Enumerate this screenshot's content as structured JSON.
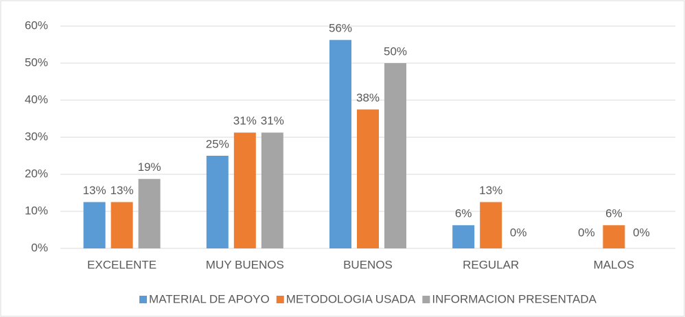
{
  "chart_data": {
    "type": "bar",
    "categories": [
      "EXCELENTE",
      "MUY BUENOS",
      "BUENOS",
      "REGULAR",
      "MALOS"
    ],
    "series": [
      {
        "name": "MATERIAL DE APOYO",
        "color": "#5b9bd5",
        "values": [
          12.5,
          25,
          56.25,
          6.25,
          0
        ],
        "value_labels": [
          "13%",
          "25%",
          "56%",
          "6%",
          "0%"
        ]
      },
      {
        "name": "METODOLOGIA USADA",
        "color": "#ed7d31",
        "values": [
          12.5,
          31.25,
          37.5,
          12.5,
          6.25
        ],
        "value_labels": [
          "13%",
          "31%",
          "38%",
          "13%",
          "6%"
        ]
      },
      {
        "name": "INFORMACION PRESENTADA",
        "color": "#a5a5a5",
        "values": [
          18.75,
          31.25,
          50,
          0,
          0
        ],
        "value_labels": [
          "19%",
          "31%",
          "50%",
          "0%",
          "0%"
        ]
      }
    ],
    "ylim": [
      0,
      60
    ],
    "yticks": [
      {
        "value": 0,
        "label": "0%"
      },
      {
        "value": 10,
        "label": "10%"
      },
      {
        "value": 20,
        "label": "20%"
      },
      {
        "value": 30,
        "label": "30%"
      },
      {
        "value": 40,
        "label": "40%"
      },
      {
        "value": 50,
        "label": "50%"
      },
      {
        "value": 60,
        "label": "60%"
      }
    ],
    "grid": true,
    "legend": "bottom"
  }
}
